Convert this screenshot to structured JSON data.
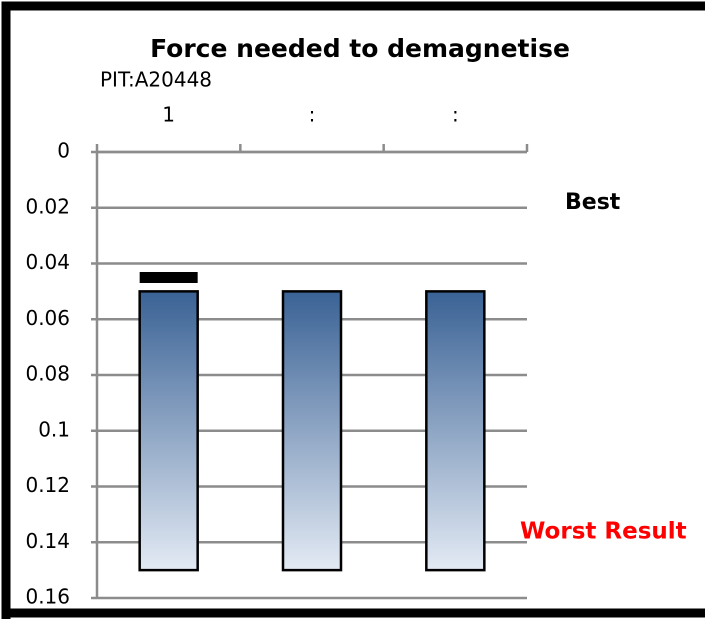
{
  "chart_data": {
    "type": "range_bar",
    "title": "Force needed to demagnetise",
    "subtitle": "PIT:A20448",
    "categories": [
      "1",
      ":",
      ":"
    ],
    "low": [
      0.05,
      0.05,
      0.05
    ],
    "high": [
      0.15,
      0.15,
      0.15
    ],
    "marker_values": [
      0.045,
      null,
      null
    ],
    "bar_color_top": "#3a6295",
    "bar_color_bottom": "#e3eaf4",
    "marker_color": "#000000",
    "ylim": [
      0,
      0.16
    ],
    "yticks": [
      0,
      0.02,
      0.04,
      0.06,
      0.08,
      0.1,
      0.12,
      0.14,
      0.16
    ],
    "y_reversed": true,
    "grid": true,
    "annotations": [
      {
        "text": "Best",
        "color": "#000000"
      },
      {
        "text": "Worst Result",
        "color": "#ff0000"
      }
    ]
  }
}
